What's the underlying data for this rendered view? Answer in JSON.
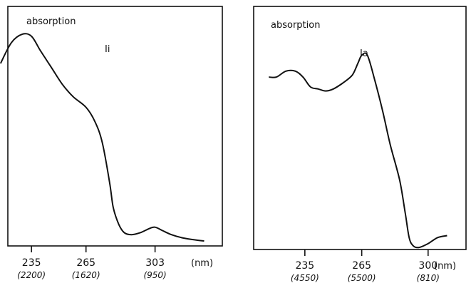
{
  "chart_data": [
    {
      "type": "line",
      "ylabel": "absorption",
      "compound_label": "Ii",
      "unit_label": "(nm)",
      "xlim": [
        222,
        340
      ],
      "ylim": [
        0,
        1
      ],
      "x_ticks": [
        235,
        265,
        303
      ],
      "x_tick_labels": [
        "235",
        "265",
        "303"
      ],
      "x_sublabels": [
        "(2200)",
        "(1620)",
        "(950)"
      ],
      "series": [
        {
          "x": [
            218,
            224,
            230,
            235,
            240,
            246,
            252,
            258,
            265,
            270,
            274,
            278,
            280,
            283,
            286,
            290,
            295,
            300,
            303,
            307,
            312,
            318,
            325,
            330
          ],
          "y": [
            0.85,
            0.95,
            0.99,
            0.98,
            0.91,
            0.83,
            0.75,
            0.69,
            0.64,
            0.57,
            0.47,
            0.28,
            0.16,
            0.08,
            0.04,
            0.03,
            0.04,
            0.06,
            0.066,
            0.05,
            0.03,
            0.015,
            0.005,
            0.0
          ]
        }
      ]
    },
    {
      "type": "line",
      "ylabel": "absorption",
      "compound_label": "Ia",
      "unit_label": "(nm)",
      "xlim": [
        208,
        320
      ],
      "ylim": [
        0,
        1
      ],
      "x_ticks": [
        235,
        265,
        300
      ],
      "x_tick_labels": [
        "235",
        "265",
        "300"
      ],
      "x_sublabels": [
        "(4550)",
        "(5500)",
        "(810)"
      ],
      "series": [
        {
          "x": [
            216,
            220,
            225,
            230,
            234,
            238,
            242,
            246,
            250,
            255,
            260,
            263,
            265,
            268,
            272,
            276,
            280,
            285,
            288,
            290,
            292,
            295,
            300,
            305,
            310
          ],
          "y": [
            0.87,
            0.87,
            0.9,
            0.9,
            0.87,
            0.82,
            0.81,
            0.8,
            0.81,
            0.84,
            0.88,
            0.94,
            0.98,
            0.98,
            0.85,
            0.7,
            0.53,
            0.35,
            0.18,
            0.06,
            0.02,
            0.01,
            0.03,
            0.06,
            0.07
          ]
        }
      ]
    }
  ]
}
